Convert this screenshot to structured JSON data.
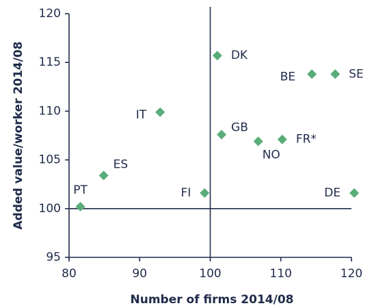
{
  "chart_data": {
    "type": "scatter",
    "xlabel": "Number of firms 2014/08",
    "ylabel": "Added value/worker 2014/08",
    "color": "#5aac78",
    "xlim": [
      80,
      120
    ],
    "ylim": [
      95,
      120
    ],
    "xticks": [
      80,
      90,
      100,
      110,
      120
    ],
    "yticks": [
      95,
      100,
      105,
      110,
      115,
      120
    ],
    "xref": 100,
    "yref": 100,
    "labels": [
      "DK",
      "BE",
      "SE",
      "IT",
      "GB",
      "NO",
      "FR*",
      "ES",
      "FI",
      "DE",
      "PT"
    ],
    "x": [
      101.0,
      114.4,
      117.7,
      92.9,
      101.6,
      106.8,
      110.2,
      84.9,
      99.2,
      120.4,
      81.6
    ],
    "y": [
      115.7,
      113.8,
      113.8,
      109.9,
      107.6,
      106.9,
      107.1,
      103.4,
      101.6,
      101.6,
      100.2
    ]
  }
}
